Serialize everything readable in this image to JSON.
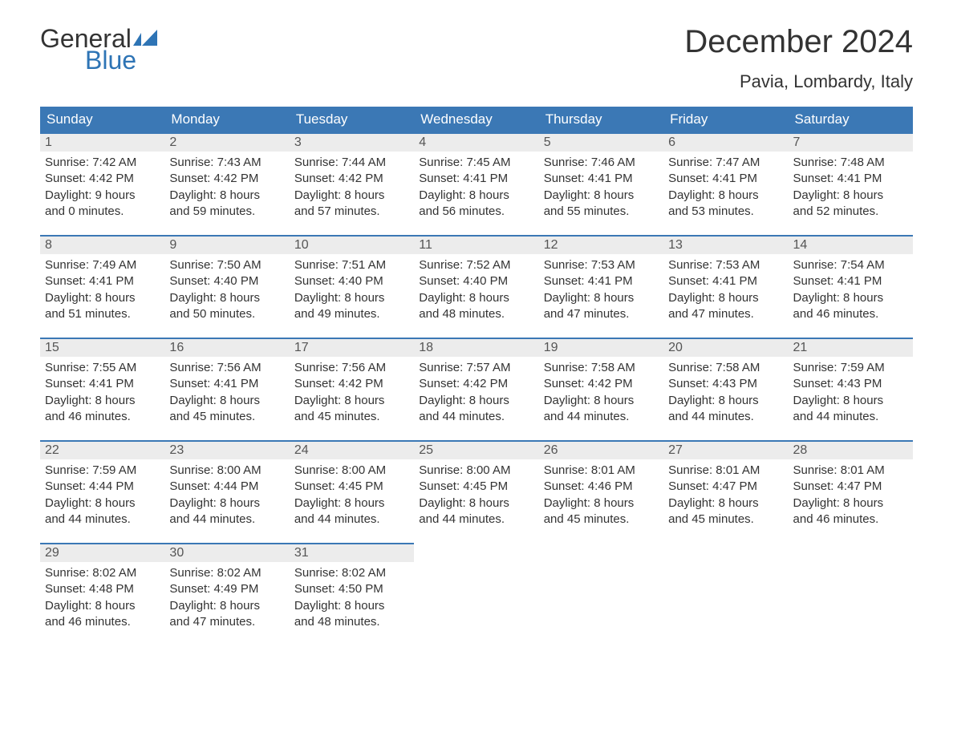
{
  "brand": {
    "word1": "General",
    "word2": "Blue",
    "text_color": "#333333",
    "accent_color": "#2e74b5",
    "logo_fill": "#2e74b5"
  },
  "title": "December 2024",
  "location": "Pavia, Lombardy, Italy",
  "colors": {
    "header_bg": "#3b78b5",
    "header_text": "#ffffff",
    "daynum_bg": "#ececec",
    "row_border": "#3b78b5",
    "body_text": "#333333",
    "background": "#ffffff"
  },
  "fonts": {
    "title_size_pt": 30,
    "location_size_pt": 17,
    "header_size_pt": 13,
    "body_size_pt": 11
  },
  "weekdays": [
    "Sunday",
    "Monday",
    "Tuesday",
    "Wednesday",
    "Thursday",
    "Friday",
    "Saturday"
  ],
  "weeks": [
    [
      {
        "n": "1",
        "sunrise": "Sunrise: 7:42 AM",
        "sunset": "Sunset: 4:42 PM",
        "day1": "Daylight: 9 hours",
        "day2": "and 0 minutes."
      },
      {
        "n": "2",
        "sunrise": "Sunrise: 7:43 AM",
        "sunset": "Sunset: 4:42 PM",
        "day1": "Daylight: 8 hours",
        "day2": "and 59 minutes."
      },
      {
        "n": "3",
        "sunrise": "Sunrise: 7:44 AM",
        "sunset": "Sunset: 4:42 PM",
        "day1": "Daylight: 8 hours",
        "day2": "and 57 minutes."
      },
      {
        "n": "4",
        "sunrise": "Sunrise: 7:45 AM",
        "sunset": "Sunset: 4:41 PM",
        "day1": "Daylight: 8 hours",
        "day2": "and 56 minutes."
      },
      {
        "n": "5",
        "sunrise": "Sunrise: 7:46 AM",
        "sunset": "Sunset: 4:41 PM",
        "day1": "Daylight: 8 hours",
        "day2": "and 55 minutes."
      },
      {
        "n": "6",
        "sunrise": "Sunrise: 7:47 AM",
        "sunset": "Sunset: 4:41 PM",
        "day1": "Daylight: 8 hours",
        "day2": "and 53 minutes."
      },
      {
        "n": "7",
        "sunrise": "Sunrise: 7:48 AM",
        "sunset": "Sunset: 4:41 PM",
        "day1": "Daylight: 8 hours",
        "day2": "and 52 minutes."
      }
    ],
    [
      {
        "n": "8",
        "sunrise": "Sunrise: 7:49 AM",
        "sunset": "Sunset: 4:41 PM",
        "day1": "Daylight: 8 hours",
        "day2": "and 51 minutes."
      },
      {
        "n": "9",
        "sunrise": "Sunrise: 7:50 AM",
        "sunset": "Sunset: 4:40 PM",
        "day1": "Daylight: 8 hours",
        "day2": "and 50 minutes."
      },
      {
        "n": "10",
        "sunrise": "Sunrise: 7:51 AM",
        "sunset": "Sunset: 4:40 PM",
        "day1": "Daylight: 8 hours",
        "day2": "and 49 minutes."
      },
      {
        "n": "11",
        "sunrise": "Sunrise: 7:52 AM",
        "sunset": "Sunset: 4:40 PM",
        "day1": "Daylight: 8 hours",
        "day2": "and 48 minutes."
      },
      {
        "n": "12",
        "sunrise": "Sunrise: 7:53 AM",
        "sunset": "Sunset: 4:41 PM",
        "day1": "Daylight: 8 hours",
        "day2": "and 47 minutes."
      },
      {
        "n": "13",
        "sunrise": "Sunrise: 7:53 AM",
        "sunset": "Sunset: 4:41 PM",
        "day1": "Daylight: 8 hours",
        "day2": "and 47 minutes."
      },
      {
        "n": "14",
        "sunrise": "Sunrise: 7:54 AM",
        "sunset": "Sunset: 4:41 PM",
        "day1": "Daylight: 8 hours",
        "day2": "and 46 minutes."
      }
    ],
    [
      {
        "n": "15",
        "sunrise": "Sunrise: 7:55 AM",
        "sunset": "Sunset: 4:41 PM",
        "day1": "Daylight: 8 hours",
        "day2": "and 46 minutes."
      },
      {
        "n": "16",
        "sunrise": "Sunrise: 7:56 AM",
        "sunset": "Sunset: 4:41 PM",
        "day1": "Daylight: 8 hours",
        "day2": "and 45 minutes."
      },
      {
        "n": "17",
        "sunrise": "Sunrise: 7:56 AM",
        "sunset": "Sunset: 4:42 PM",
        "day1": "Daylight: 8 hours",
        "day2": "and 45 minutes."
      },
      {
        "n": "18",
        "sunrise": "Sunrise: 7:57 AM",
        "sunset": "Sunset: 4:42 PM",
        "day1": "Daylight: 8 hours",
        "day2": "and 44 minutes."
      },
      {
        "n": "19",
        "sunrise": "Sunrise: 7:58 AM",
        "sunset": "Sunset: 4:42 PM",
        "day1": "Daylight: 8 hours",
        "day2": "and 44 minutes."
      },
      {
        "n": "20",
        "sunrise": "Sunrise: 7:58 AM",
        "sunset": "Sunset: 4:43 PM",
        "day1": "Daylight: 8 hours",
        "day2": "and 44 minutes."
      },
      {
        "n": "21",
        "sunrise": "Sunrise: 7:59 AM",
        "sunset": "Sunset: 4:43 PM",
        "day1": "Daylight: 8 hours",
        "day2": "and 44 minutes."
      }
    ],
    [
      {
        "n": "22",
        "sunrise": "Sunrise: 7:59 AM",
        "sunset": "Sunset: 4:44 PM",
        "day1": "Daylight: 8 hours",
        "day2": "and 44 minutes."
      },
      {
        "n": "23",
        "sunrise": "Sunrise: 8:00 AM",
        "sunset": "Sunset: 4:44 PM",
        "day1": "Daylight: 8 hours",
        "day2": "and 44 minutes."
      },
      {
        "n": "24",
        "sunrise": "Sunrise: 8:00 AM",
        "sunset": "Sunset: 4:45 PM",
        "day1": "Daylight: 8 hours",
        "day2": "and 44 minutes."
      },
      {
        "n": "25",
        "sunrise": "Sunrise: 8:00 AM",
        "sunset": "Sunset: 4:45 PM",
        "day1": "Daylight: 8 hours",
        "day2": "and 44 minutes."
      },
      {
        "n": "26",
        "sunrise": "Sunrise: 8:01 AM",
        "sunset": "Sunset: 4:46 PM",
        "day1": "Daylight: 8 hours",
        "day2": "and 45 minutes."
      },
      {
        "n": "27",
        "sunrise": "Sunrise: 8:01 AM",
        "sunset": "Sunset: 4:47 PM",
        "day1": "Daylight: 8 hours",
        "day2": "and 45 minutes."
      },
      {
        "n": "28",
        "sunrise": "Sunrise: 8:01 AM",
        "sunset": "Sunset: 4:47 PM",
        "day1": "Daylight: 8 hours",
        "day2": "and 46 minutes."
      }
    ],
    [
      {
        "n": "29",
        "sunrise": "Sunrise: 8:02 AM",
        "sunset": "Sunset: 4:48 PM",
        "day1": "Daylight: 8 hours",
        "day2": "and 46 minutes."
      },
      {
        "n": "30",
        "sunrise": "Sunrise: 8:02 AM",
        "sunset": "Sunset: 4:49 PM",
        "day1": "Daylight: 8 hours",
        "day2": "and 47 minutes."
      },
      {
        "n": "31",
        "sunrise": "Sunrise: 8:02 AM",
        "sunset": "Sunset: 4:50 PM",
        "day1": "Daylight: 8 hours",
        "day2": "and 48 minutes."
      },
      null,
      null,
      null,
      null
    ]
  ]
}
